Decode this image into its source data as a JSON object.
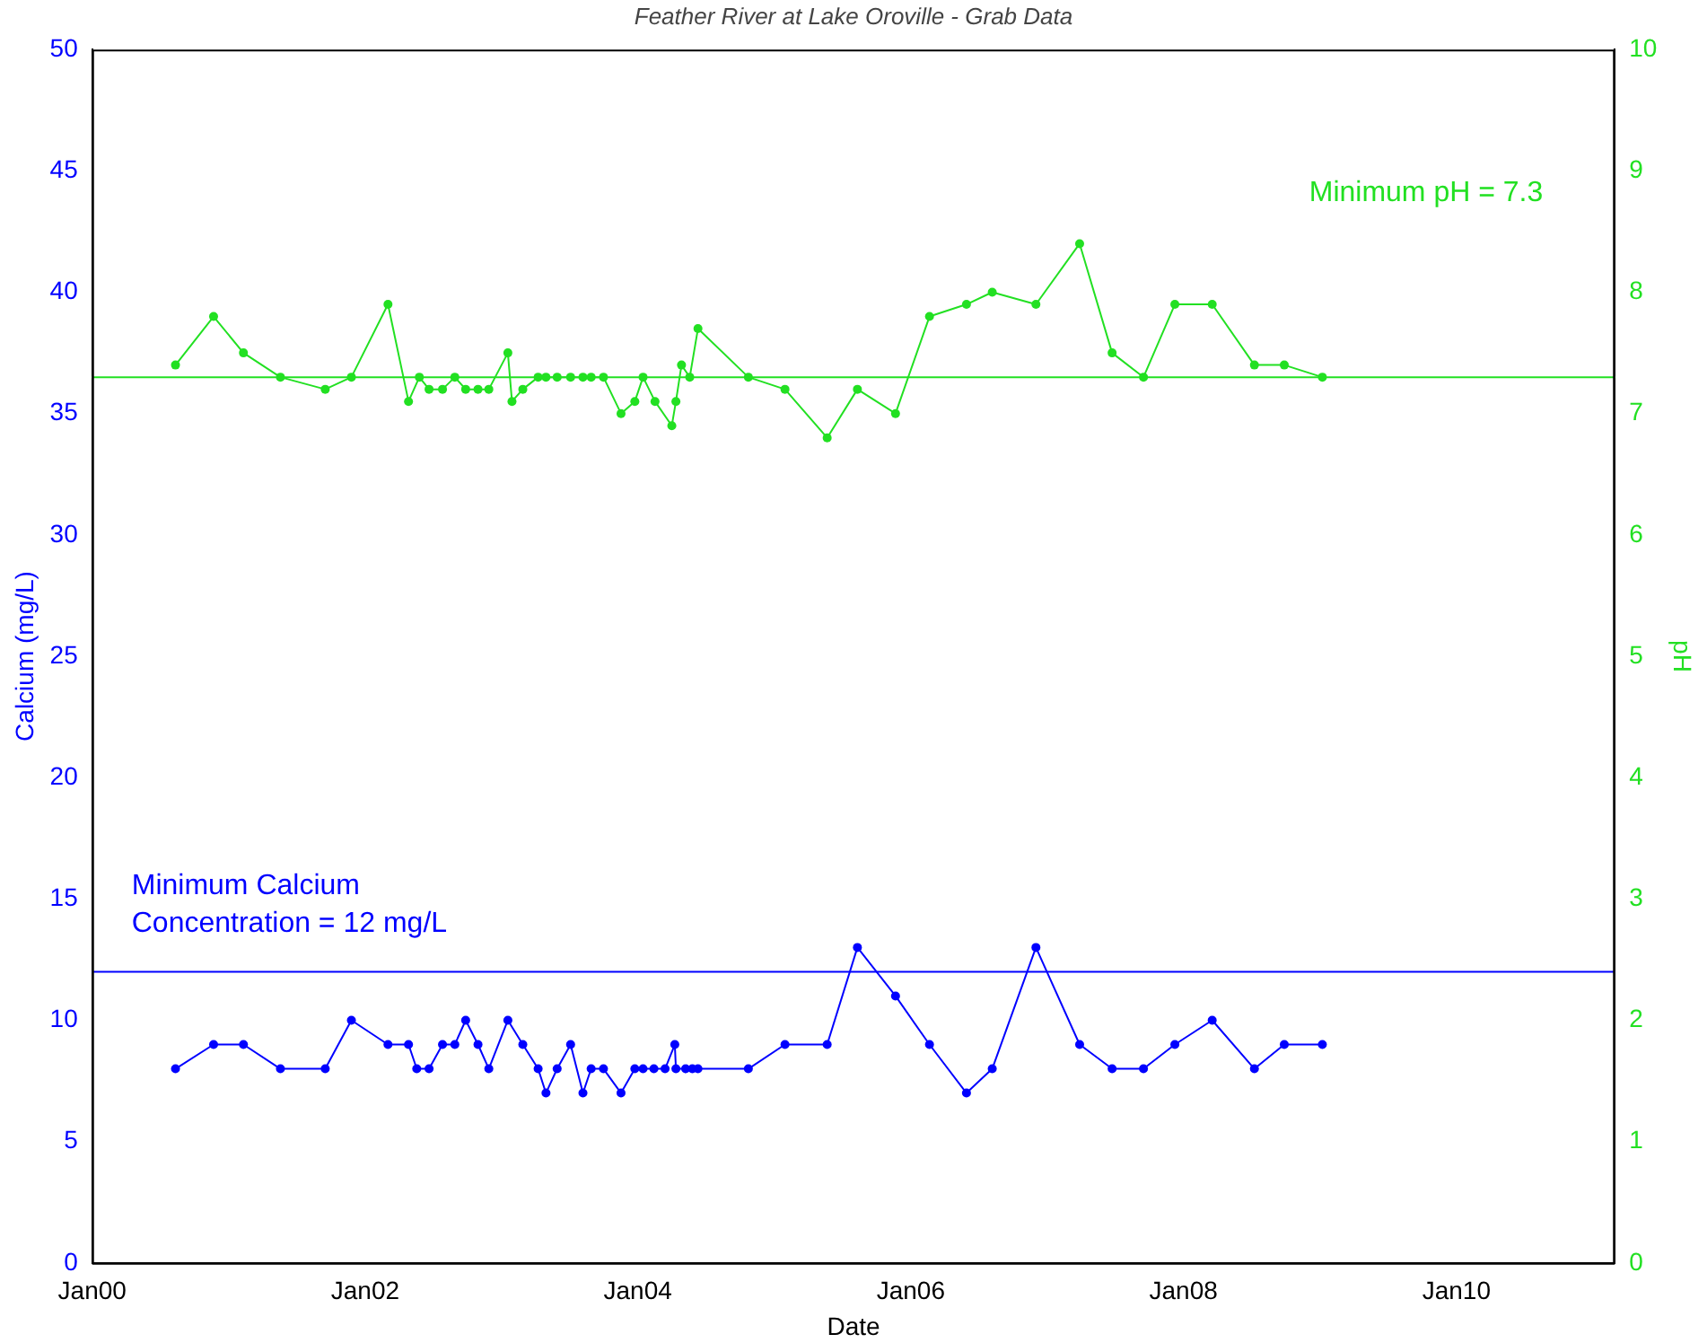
{
  "chart_data": {
    "type": "line",
    "title": "Feather River at Lake Oroville - Grab Data",
    "xlabel": "Date",
    "ylabel": "Calcium (mg/L)",
    "y2label": "pH",
    "x": [
      "2000-08-11",
      "2000-11-21",
      "2001-02-09",
      "2001-05-19",
      "2001-09-16",
      "2001-11-25",
      "2002-03-03",
      "2002-04-27",
      "2002-05-19",
      "2002-06-21",
      "2002-07-27",
      "2002-08-29",
      "2002-09-27",
      "2002-10-30",
      "2002-11-28",
      "2003-01-18",
      "2003-02-27",
      "2003-04-09",
      "2003-04-30",
      "2003-05-30",
      "2003-07-05",
      "2003-08-07",
      "2003-08-29",
      "2003-10-01",
      "2003-11-17",
      "2003-12-24",
      "2004-01-15",
      "2004-02-13",
      "2004-03-14",
      "2004-04-09",
      "2004-04-12",
      "2004-05-08",
      "2004-05-26",
      "2004-06-10",
      "2004-10-23",
      "2005-01-29",
      "2005-05-22",
      "2005-08-11",
      "2005-11-21",
      "2006-02-20",
      "2006-05-30",
      "2006-08-07",
      "2006-12-02",
      "2007-03-29",
      "2007-06-24",
      "2007-09-16",
      "2007-12-09",
      "2008-03-18",
      "2008-07-09",
      "2008-09-27",
      "2009-01-07"
    ],
    "series": [
      {
        "name": null,
        "color": "#0000ff",
        "values": [
          8,
          9,
          9,
          8,
          8,
          10,
          9,
          9,
          8,
          8,
          9,
          9,
          10,
          9,
          8,
          10,
          9,
          8,
          7,
          8,
          9,
          7,
          8,
          8,
          7,
          8,
          8,
          8,
          8,
          9,
          8,
          8,
          8,
          8,
          8,
          9,
          9,
          13,
          11,
          9,
          7,
          8,
          13,
          9,
          8,
          8,
          9,
          10,
          8,
          9,
          9
        ]
      },
      {
        "name": null,
        "color": "#22e022",
        "axis": "y2",
        "x": [
          "2000-08-11",
          "2000-11-21",
          "2001-02-09",
          "2001-05-19",
          "2001-09-16",
          "2001-11-25",
          "2002-03-03",
          "2002-04-27",
          "2002-05-26",
          "2002-06-21",
          "2002-07-27",
          "2002-08-29",
          "2002-09-27",
          "2002-10-30",
          "2002-11-28",
          "2003-01-18",
          "2003-01-29",
          "2003-02-27",
          "2003-04-09",
          "2003-04-30",
          "2003-05-30",
          "2003-07-05",
          "2003-08-07",
          "2003-08-29",
          "2003-10-01",
          "2003-11-17",
          "2003-12-24",
          "2004-01-15",
          "2004-02-16",
          "2004-04-01",
          "2004-04-12",
          "2004-04-27",
          "2004-05-19",
          "2004-06-10",
          "2004-10-23",
          "2005-01-29",
          "2005-05-22",
          "2005-08-11",
          "2005-11-21",
          "2006-02-20",
          "2006-05-30",
          "2006-08-07",
          "2006-12-02",
          "2007-03-29",
          "2007-06-24",
          "2007-09-16",
          "2007-12-09",
          "2008-03-18",
          "2008-07-09",
          "2008-09-27",
          "2009-01-07"
        ],
        "values": [
          7.4,
          7.8,
          7.5,
          7.3,
          7.2,
          7.3,
          7.9,
          7.1,
          7.3,
          7.2,
          7.2,
          7.3,
          7.2,
          7.2,
          7.2,
          7.5,
          7.1,
          7.2,
          7.3,
          7.3,
          7.3,
          7.3,
          7.3,
          7.3,
          7.3,
          7.0,
          7.1,
          7.3,
          7.1,
          6.9,
          7.1,
          7.4,
          7.3,
          7.7,
          7.3,
          7.2,
          6.8,
          7.2,
          7.0,
          7.8,
          7.9,
          8.0,
          7.9,
          8.4,
          7.5,
          7.3,
          7.9,
          7.9,
          7.4,
          7.4,
          7.3
        ]
      }
    ],
    "xlim": [
      "2000-01-01",
      "2011-03-01"
    ],
    "xticks": [
      {
        "value": "2000-01-01",
        "label": "Jan00"
      },
      {
        "value": "2002-01-01",
        "label": "Jan02"
      },
      {
        "value": "2004-01-01",
        "label": "Jan04"
      },
      {
        "value": "2006-01-01",
        "label": "Jan06"
      },
      {
        "value": "2008-01-01",
        "label": "Jan08"
      },
      {
        "value": "2010-01-01",
        "label": "Jan10"
      }
    ],
    "ylim": [
      0,
      50
    ],
    "yticks": [
      0,
      5,
      10,
      15,
      20,
      25,
      30,
      35,
      40,
      45,
      50
    ],
    "y2lim": [
      0,
      10
    ],
    "y2ticks": [
      0,
      1,
      2,
      3,
      4,
      5,
      6,
      7,
      8,
      9,
      10
    ],
    "ref_lines": [
      {
        "axis": "y",
        "value": 12,
        "label": "Minimum Calcium\nConcentration = 12 mg/L",
        "color": "#0000ff"
      },
      {
        "axis": "y2",
        "value": 7.3,
        "label": "Minimum pH = 7.3",
        "color": "#22e022"
      }
    ],
    "grid": false,
    "legend": false,
    "marker": "circle",
    "line_style": "solid"
  }
}
